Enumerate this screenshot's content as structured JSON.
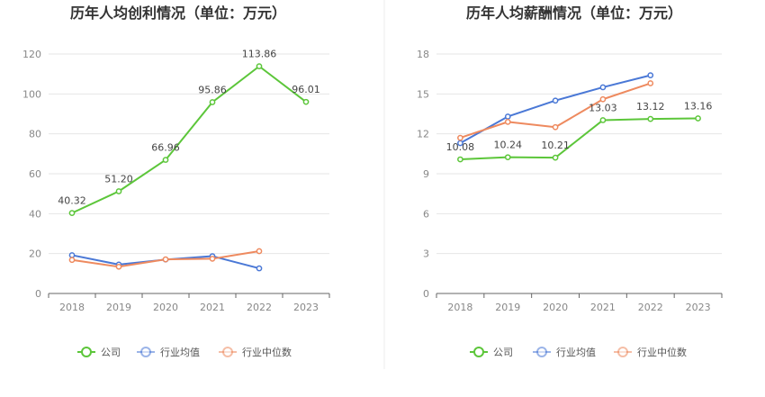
{
  "chart_data": [
    {
      "type": "line",
      "title": "历年人均创利情况（单位：万元）",
      "categories": [
        "2018",
        "2019",
        "2020",
        "2021",
        "2022",
        "2023"
      ],
      "ylim": [
        0,
        120
      ],
      "yticks": [
        0,
        20,
        40,
        60,
        80,
        100,
        120
      ],
      "grid": true,
      "legend_position": "bottom",
      "series": [
        {
          "name": "公司",
          "color": "#5cc63a",
          "values": [
            40.32,
            51.2,
            66.96,
            95.86,
            113.86,
            96.01
          ],
          "labels": [
            "40.32",
            "51.20",
            "66.96",
            "95.86",
            "113.86",
            "96.01"
          ]
        },
        {
          "name": "行业均值",
          "color": "#4a78d6",
          "values": [
            19.2,
            14.5,
            17.0,
            18.7,
            12.6,
            null
          ],
          "labels": []
        },
        {
          "name": "行业中位数",
          "color": "#ee8a5f",
          "values": [
            16.8,
            13.4,
            17.1,
            17.4,
            21.2,
            null
          ],
          "labels": []
        }
      ]
    },
    {
      "type": "line",
      "title": "历年人均薪酬情况（单位：万元）",
      "categories": [
        "2018",
        "2019",
        "2020",
        "2021",
        "2022",
        "2023"
      ],
      "ylim": [
        0,
        18
      ],
      "yticks": [
        0,
        3,
        6,
        9,
        12,
        15,
        18
      ],
      "grid": true,
      "legend_position": "bottom",
      "series": [
        {
          "name": "公司",
          "color": "#5cc63a",
          "values": [
            10.08,
            10.24,
            10.21,
            13.03,
            13.12,
            13.16
          ],
          "labels": [
            "10.08",
            "10.24",
            "10.21",
            "13.03",
            "13.12",
            "13.16"
          ]
        },
        {
          "name": "行业均值",
          "color": "#4a78d6",
          "values": [
            11.3,
            13.3,
            14.5,
            15.5,
            16.4,
            null
          ],
          "labels": []
        },
        {
          "name": "行业中位数",
          "color": "#ee8a5f",
          "values": [
            11.7,
            12.9,
            12.5,
            14.6,
            15.8,
            null
          ],
          "labels": []
        }
      ]
    }
  ]
}
